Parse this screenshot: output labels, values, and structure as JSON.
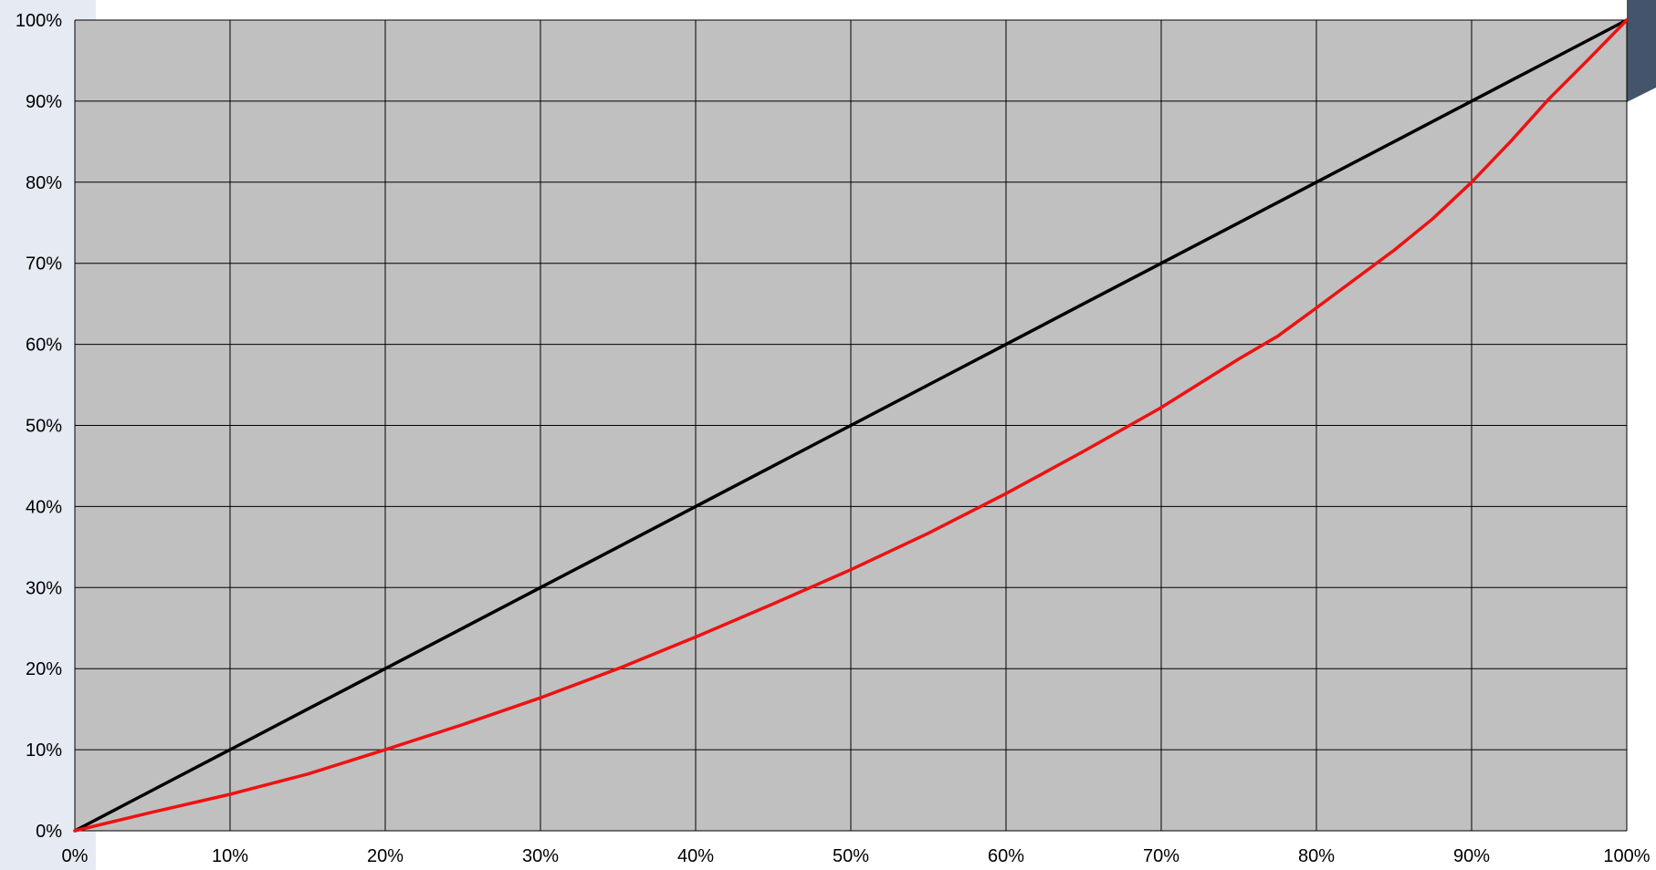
{
  "colors": {
    "plot_background": "#c0c0c0",
    "grid": "#000000",
    "left_band": "#e6ebf3",
    "corner_accent": "#44546a"
  },
  "chart_data": {
    "type": "line",
    "title": "",
    "xlabel": "",
    "ylabel": "",
    "xlim": [
      0,
      100
    ],
    "ylim": [
      0,
      100
    ],
    "grid": true,
    "legend": "none",
    "x_ticks": [
      "0%",
      "10%",
      "20%",
      "30%",
      "40%",
      "50%",
      "60%",
      "70%",
      "80%",
      "90%",
      "100%"
    ],
    "y_ticks": [
      "0%",
      "10%",
      "20%",
      "30%",
      "40%",
      "50%",
      "60%",
      "70%",
      "80%",
      "90%",
      "100%"
    ],
    "series": [
      {
        "color": "#000000",
        "x": [
          0,
          5,
          10,
          15,
          20,
          25,
          30,
          35,
          40,
          45,
          50,
          55,
          60,
          65,
          70,
          75,
          80,
          85,
          90,
          95,
          100
        ],
        "y": [
          0,
          5,
          10,
          15,
          20,
          25,
          30,
          35,
          40,
          45,
          50,
          55,
          60,
          65,
          70,
          75,
          80,
          85,
          90,
          95,
          100
        ]
      },
      {
        "color": "#ee1111",
        "x": [
          0,
          5,
          10,
          15,
          20,
          25,
          30,
          35,
          40,
          45,
          50,
          55,
          60,
          65,
          70,
          75,
          77.5,
          80,
          85,
          87.5,
          90,
          92.5,
          95,
          97.5,
          100
        ],
        "y": [
          0,
          2.3,
          4.5,
          7,
          10,
          13.1,
          16.4,
          20,
          23.9,
          28,
          32.2,
          36.7,
          41.6,
          46.8,
          52.2,
          58.2,
          61,
          64.5,
          71.6,
          75.5,
          80,
          85,
          90.3,
          95.1,
          100
        ]
      }
    ]
  }
}
